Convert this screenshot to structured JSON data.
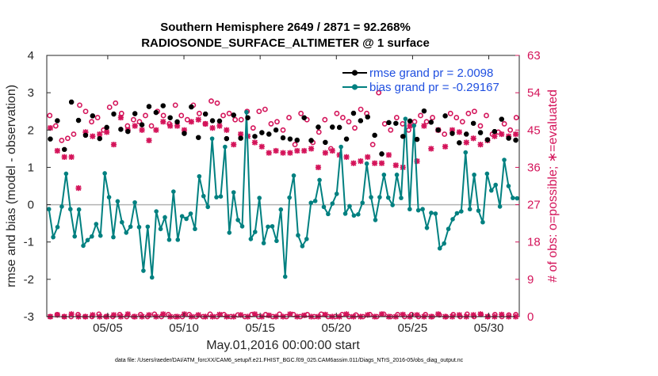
{
  "chart_data": {
    "type": "line",
    "title": "Southern Hemisphere 2649 / 2871 = 92.268%",
    "subtitle": "RADIOSONDE_SURFACE_ALTIMETER @ 1 surface",
    "xlabel": "May.01,2016 00:00:00 start",
    "ylabel": "rmse and bias (model - observation)",
    "ylabel_right": "# of obs: o=possible; ∗=evaluated",
    "footer": "data file: /Users/raeder/DAI/ATM_forcXX/CAM6_setup/f.e21.FHIST_BGC.f09_025.CAM6assim.011/Diags_NTrS_2016-05/obs_diag_output.nc",
    "xlim": [
      1,
      32
    ],
    "ylim": [
      -3,
      4
    ],
    "ylim_right": [
      0,
      63
    ],
    "x_ticks": [
      5,
      10,
      15,
      20,
      25,
      30
    ],
    "x_tick_labels": [
      "05/05",
      "05/10",
      "05/15",
      "05/20",
      "05/25",
      "05/30"
    ],
    "y_ticks": [
      -3,
      -2,
      -1,
      0,
      1,
      2,
      3,
      4
    ],
    "y_tick_labels": [
      "-3",
      "-2",
      "-1",
      "0",
      "1",
      "2",
      "3",
      "4"
    ],
    "y_ticks_right": [
      0,
      9,
      18,
      27,
      36,
      45,
      54,
      63
    ],
    "y_tick_labels_right": [
      "0",
      "9",
      "18",
      "27",
      "36",
      "45",
      "54",
      "63"
    ],
    "colors": {
      "rmse": "#000000",
      "bias": "#008080",
      "obs": "#d4145a",
      "zero_line": "#b3b3b3",
      "legend_text": "#1f4fe0"
    },
    "series": [
      {
        "name": "rmse grand pr = 2.0098",
        "color": "#000000",
        "values": [
          1.76,
          2.25,
          1.48,
          2.75,
          2.26,
          1.86,
          2.38,
          1.77,
          2.07,
          2.43,
          2.02,
          1.96,
          2.44,
          2.14,
          2.63,
          2.47,
          2.65,
          2.33,
          2.22,
          1.91,
          2.62,
          1.8,
          2.43,
          2.25,
          2.24,
          1.77,
          2.4,
          1.78,
          2.33,
          1.83,
          1.93,
          1.89,
          2.0,
          1.79,
          1.76,
          1.73,
          2.33,
          1.72,
          2.08,
          1.67,
          2.08,
          2.07,
          1.76,
          2.45,
          2.25,
          2.35,
          1.86,
          1.36,
          2.2,
          2.18,
          1.83,
          2.24,
          1.75,
          2.51,
          2.21,
          2.0,
          2.38,
          1.91,
          1.66,
          1.89,
          2.18,
          1.93,
          1.74,
          1.96,
          2.29,
          1.78,
          1.73
        ]
      },
      {
        "name": "bias grand pr = -0.29167",
        "color": "#008080",
        "values": [
          -0.12,
          -0.87,
          -0.6,
          -0.05,
          0.83,
          -0.12,
          -0.85,
          -0.13,
          -1.1,
          -0.95,
          -0.85,
          -0.52,
          -0.83,
          0.84,
          0.2,
          -0.87,
          0.09,
          -0.47,
          -0.75,
          -0.59,
          0.06,
          -0.6,
          -1.77,
          -0.59,
          -1.95,
          -0.18,
          -0.65,
          -0.34,
          -0.94,
          0.35,
          -0.94,
          -0.31,
          -0.38,
          -0.24,
          -0.65,
          0.76,
          0.23,
          -0.06,
          1.77,
          0.2,
          0.22,
          1.55,
          -0.75,
          0.33,
          -0.41,
          -0.58,
          2.48,
          -0.92,
          -0.73,
          0.18,
          -1.03,
          -0.59,
          -0.58,
          -0.97,
          -0.13,
          -1.93,
          0.19,
          0.78,
          -0.82,
          -1.11,
          -0.92,
          0.05,
          0.1,
          0.66,
          -0.06,
          -0.25,
          0.03,
          0.29,
          1.55,
          -0.24,
          -0.04,
          -0.29,
          -0.26,
          0.05,
          1.1,
          0.2,
          -0.41,
          0.2,
          0.8,
          0.19,
          -0.01,
          0.8,
          0.18,
          2.3,
          -0.12,
          2.12,
          -0.15,
          -0.12,
          -0.62,
          -0.22,
          -0.24,
          -1.17,
          -1.04,
          -0.65,
          -0.39,
          -0.23,
          -0.18,
          1.4,
          -0.12,
          0.8,
          -0.16,
          -0.47,
          0.83,
          0.38,
          0.53,
          -0.05,
          1.2,
          0.5,
          0.18,
          0.17
        ]
      }
    ],
    "obs_possible": [
      48.5,
      46,
      42.5,
      43,
      44,
      51,
      49.5,
      47,
      48,
      45,
      50.5,
      51.5,
      49,
      46,
      47.5,
      47,
      48.5,
      46,
      49.5,
      48.5,
      46.5,
      51,
      48.5,
      47.5,
      51,
      49,
      46.5,
      52,
      51.5,
      48.5,
      49,
      47.5,
      47.5,
      49.5,
      45.5,
      49.5,
      50,
      46.5,
      47,
      45,
      48,
      41.5,
      49,
      47.5,
      42,
      44.5,
      47.5,
      40.5,
      49,
      48,
      47,
      45.5,
      50,
      49,
      41.5,
      54,
      46.5,
      45,
      48,
      46.5,
      45,
      47,
      48.5,
      47,
      48,
      45,
      44,
      49,
      48,
      47,
      49,
      49.5,
      46,
      48.5,
      44,
      44.5,
      46.5,
      45,
      48
    ],
    "obs_evaluated": [
      45.5,
      40,
      38.5,
      38.5,
      31,
      44.5,
      43.5,
      44,
      44.5,
      41.5,
      48,
      45,
      46,
      45,
      42.5,
      45,
      47,
      46,
      46,
      45,
      47,
      47.5,
      46.5,
      45.5,
      46,
      45,
      41.5,
      44,
      43.5,
      42,
      41,
      39.5,
      40,
      39.5,
      39.5,
      40,
      40,
      40.5,
      36,
      39.5,
      40,
      39,
      38.5,
      37,
      37.5,
      38.5,
      37,
      37,
      39,
      36.5,
      36,
      46,
      37.5,
      46,
      40.5,
      45,
      41,
      45,
      44.5,
      42,
      43,
      41.5,
      42.5,
      43.5,
      44,
      43.5,
      44
    ],
    "obs_bottom_evaluated": [
      0,
      0.4,
      0,
      0.6,
      0,
      0,
      0.4,
      0,
      0,
      0.4,
      0,
      0.6,
      0,
      0,
      0.4,
      0,
      0.6,
      0,
      0,
      0.6,
      0,
      0.4,
      0,
      0,
      0.5,
      0,
      0,
      0.4,
      0,
      0.6,
      0,
      0.3,
      0,
      0,
      0.6,
      0,
      0.3,
      0,
      0,
      0.5,
      0,
      0,
      0.6,
      0,
      0,
      0.4,
      0,
      0.6,
      0,
      0,
      0.5,
      0,
      0.4,
      0,
      0,
      0.6,
      0,
      0,
      0.4,
      0,
      0.4,
      0.6,
      0,
      0,
      0.5,
      0,
      0
    ],
    "obs_bottom_possible": [
      0,
      0.5,
      0,
      0,
      0.5,
      0,
      0,
      0.6,
      0,
      0,
      0.5,
      0,
      0,
      0.5,
      0,
      0.6,
      0,
      0.5,
      0,
      0,
      0.5,
      0,
      0,
      0.6,
      0,
      0.5,
      0,
      0.4,
      0,
      0.5,
      0,
      0.5,
      0,
      0.6,
      0,
      0.5,
      0,
      0.5,
      0,
      0.6,
      0,
      0,
      0.5,
      0,
      0.4,
      0,
      0.5,
      0,
      0.6,
      0,
      0.5,
      0,
      0.5,
      0,
      0.5,
      0,
      0.4,
      0,
      0.5,
      0,
      0.6,
      0,
      0.5,
      0,
      0.5,
      0,
      0.4,
      0.5
    ]
  }
}
